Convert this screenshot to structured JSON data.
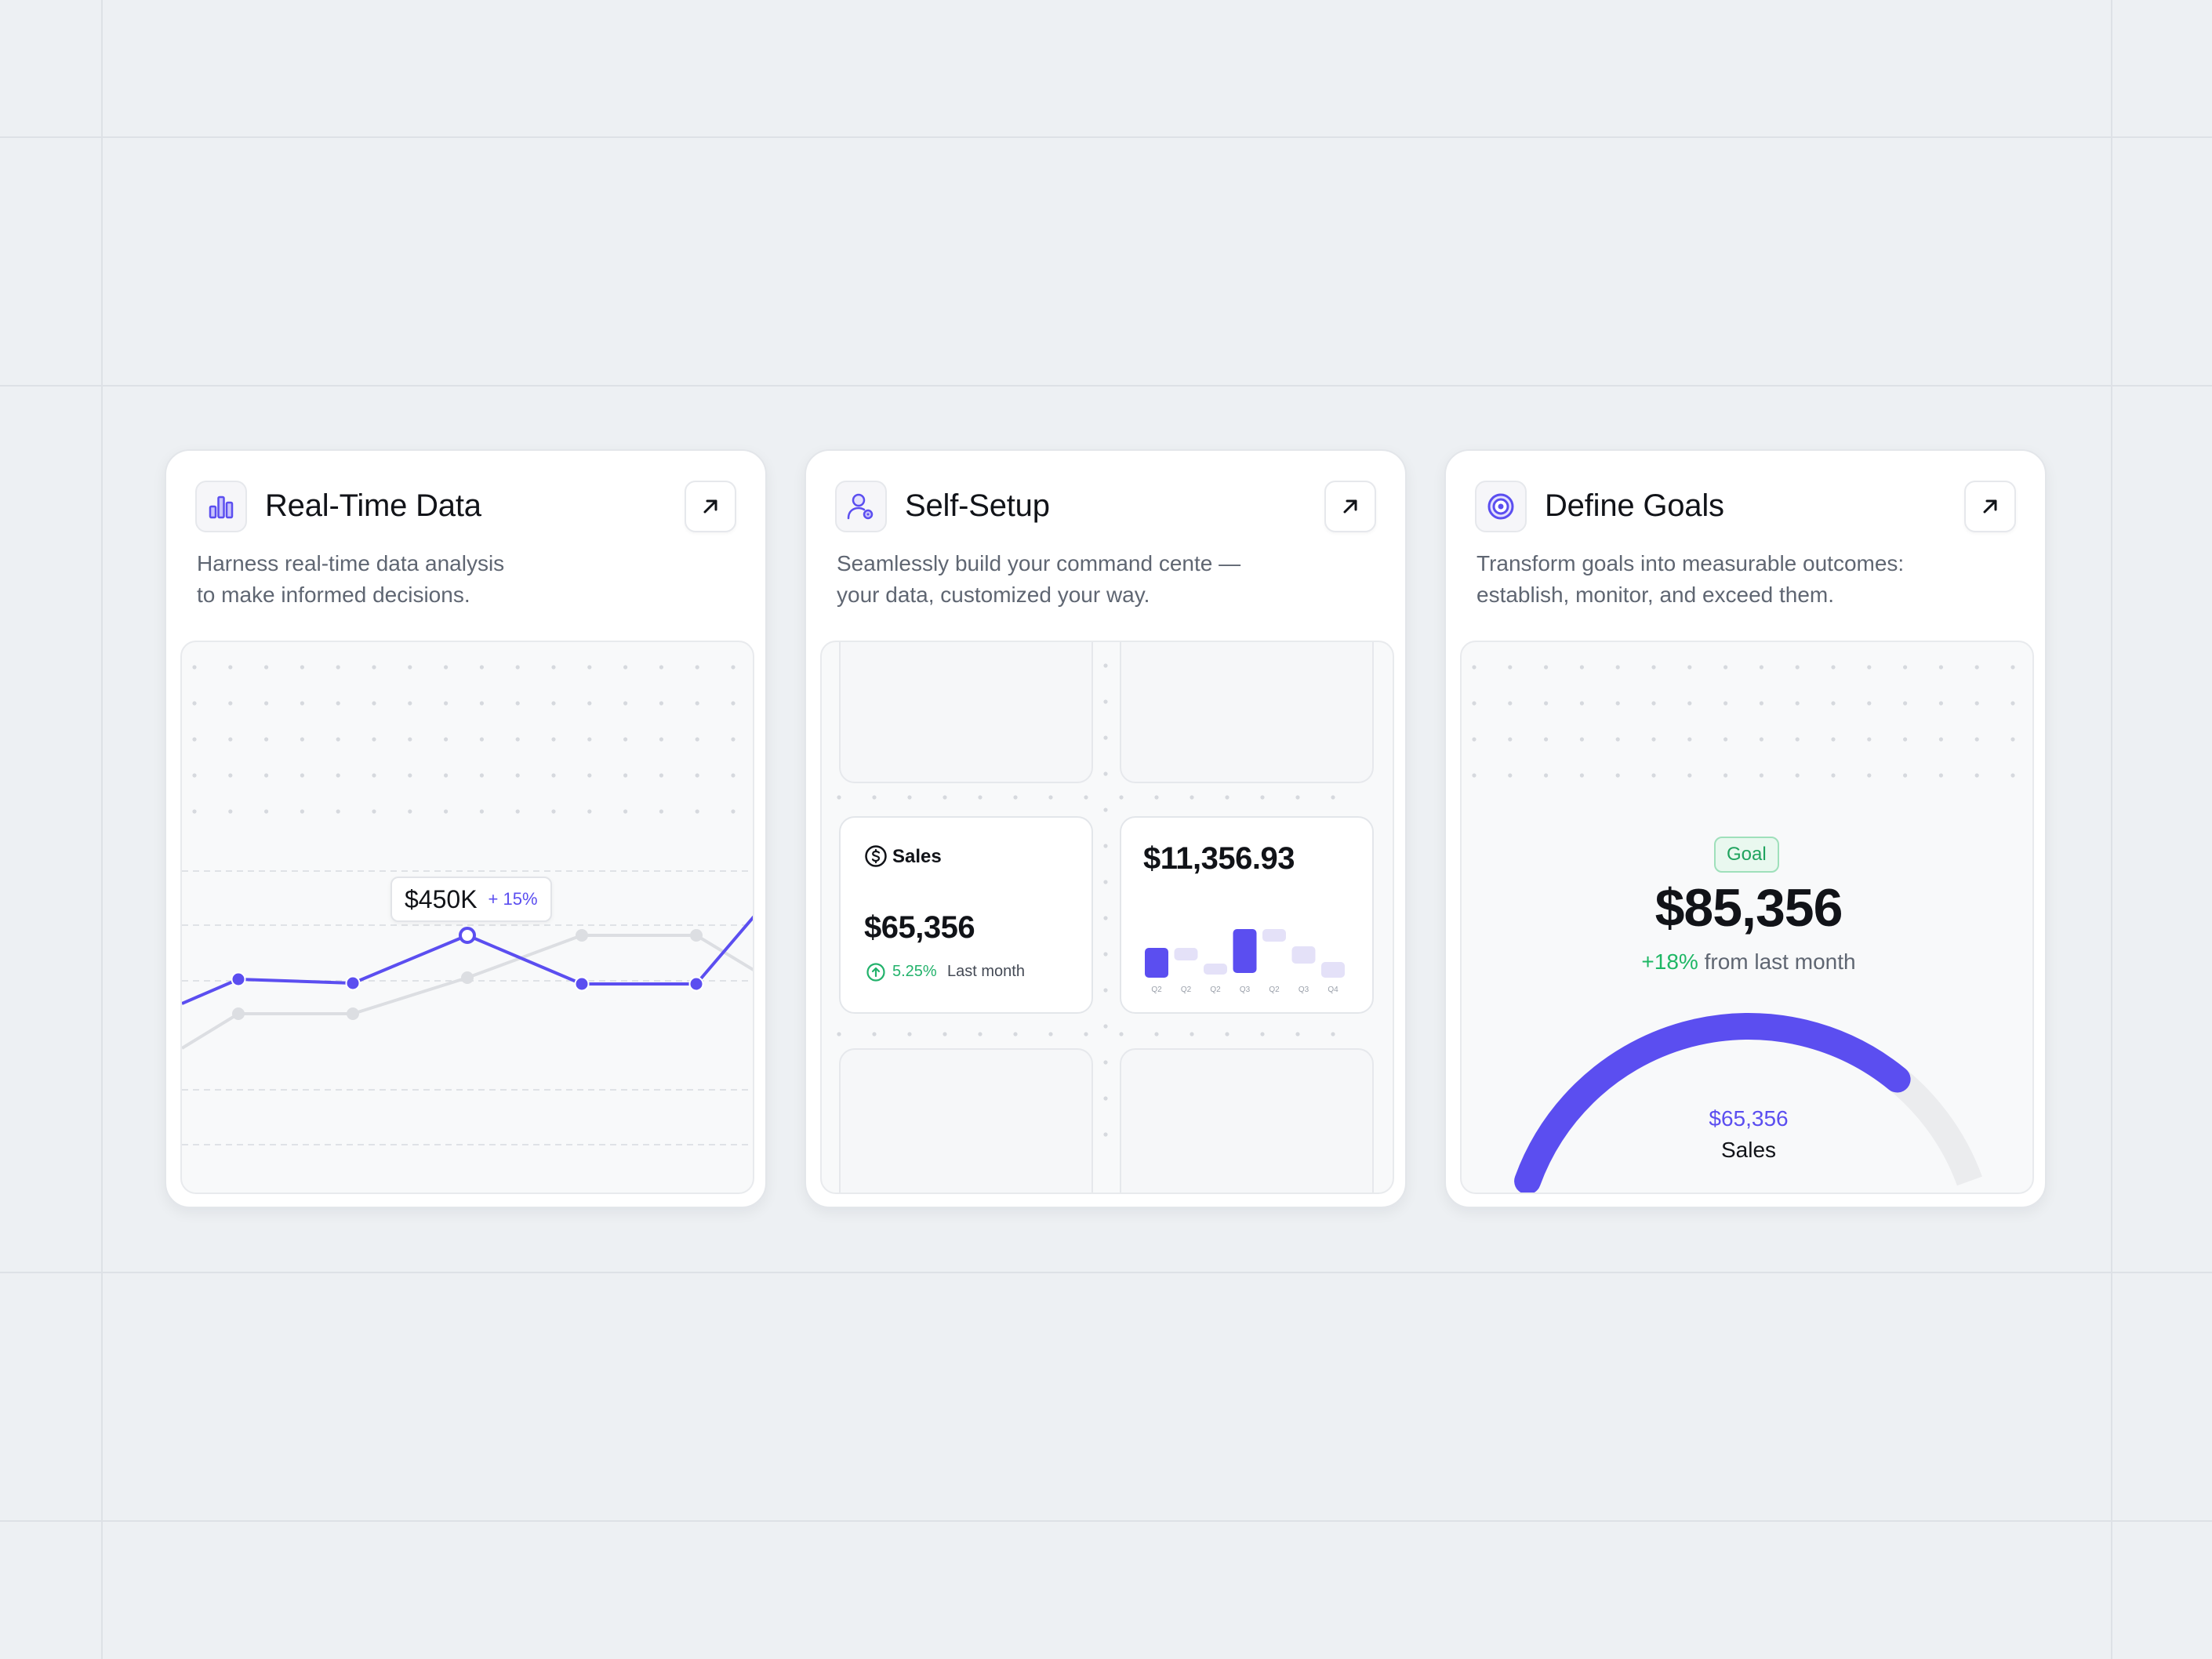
{
  "accent_color": "#5b4ef0",
  "positive_color": "#22b26b",
  "cards": [
    {
      "title": "Real-Time Data",
      "description_line1": "Harness real-time data analysis",
      "description_line2": "to make informed decisions.",
      "icon": "bar-chart-icon",
      "action_icon": "arrow-up-right-icon",
      "tooltip": {
        "value": "$450K",
        "change": "+ 15%"
      }
    },
    {
      "title": "Self-Setup",
      "description_line1": "Seamlessly build your command cente —",
      "description_line2": "your data, customized your way.",
      "icon": "user-settings-icon",
      "action_icon": "arrow-up-right-icon",
      "sales_tile": {
        "label": "Sales",
        "icon": "dollar-circle-icon",
        "amount": "$65,356",
        "change": "5.25%",
        "change_icon": "arrow-up-circle-icon",
        "period": "Last month"
      },
      "revenue_tile": {
        "amount": "$11,356.93",
        "bar_labels": [
          "Q2",
          "Q2",
          "Q2",
          "Q3",
          "Q2",
          "Q3",
          "Q4"
        ]
      }
    },
    {
      "title": "Define Goals",
      "description_line1": "Transform goals into measurable outcomes:",
      "description_line2": "establish, monitor, and exceed them.",
      "icon": "target-icon",
      "action_icon": "arrow-up-right-icon",
      "goal": {
        "badge": "Goal",
        "amount": "$85,356",
        "change": "+18%",
        "change_text": "from last month",
        "gauge_value": "$65,356",
        "gauge_label": "Sales",
        "progress_fraction": 0.78
      }
    }
  ]
}
